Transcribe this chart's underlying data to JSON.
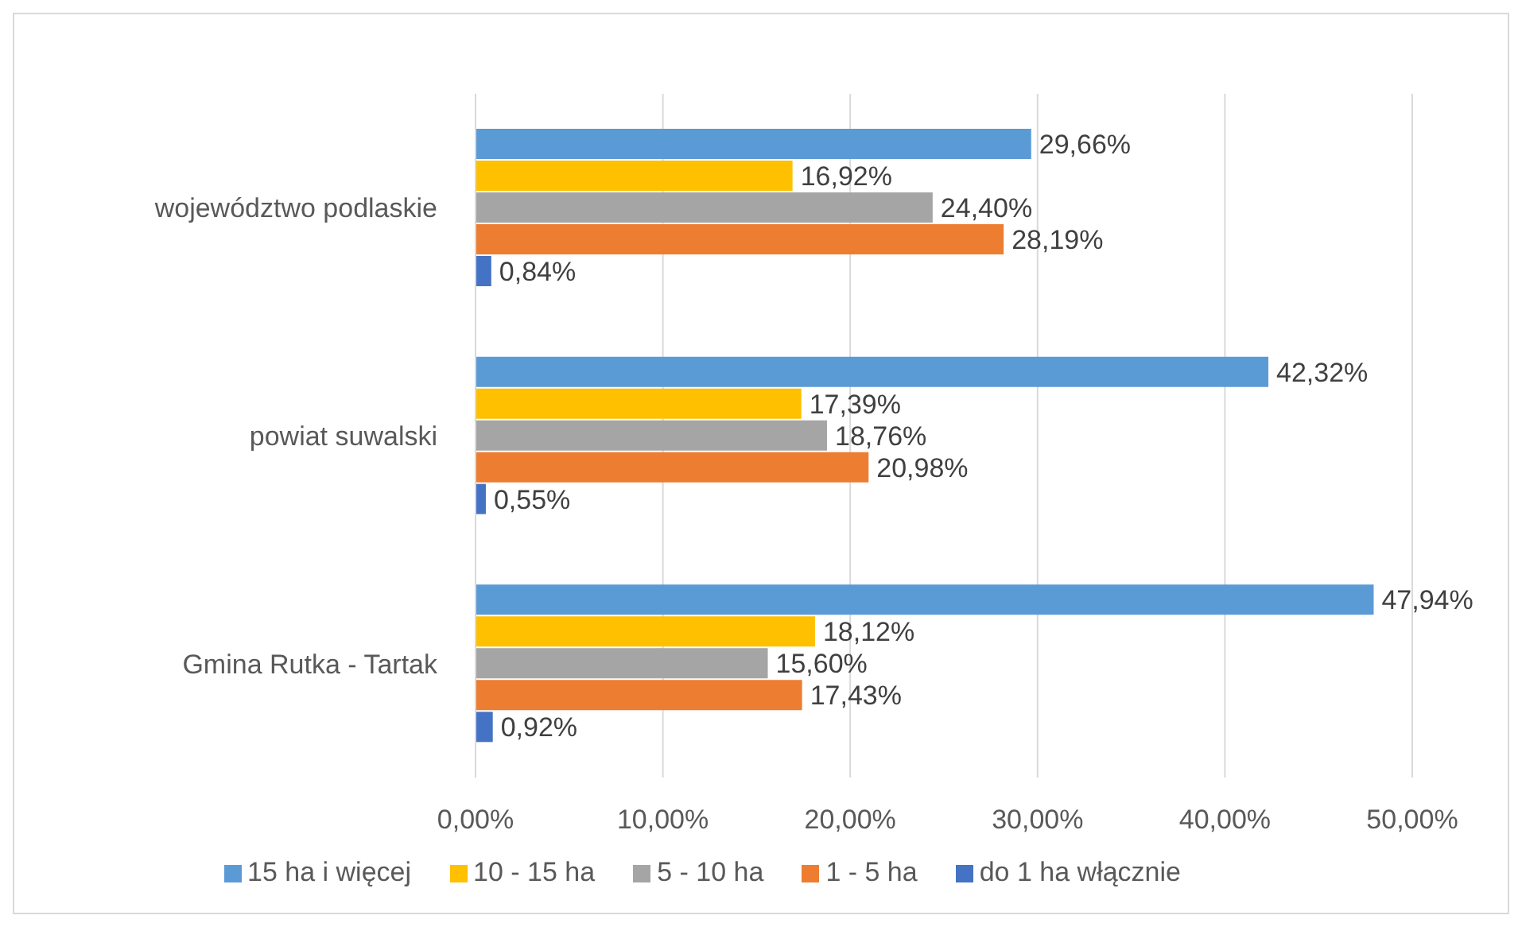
{
  "chart_data": {
    "type": "bar",
    "orientation": "horizontal",
    "categories": [
      "województwo podlaskie",
      "powiat suwalski",
      "Gmina Rutka - Tartak"
    ],
    "series": [
      {
        "name": "15 ha i więcej",
        "color": "#5b9bd5",
        "values": [
          29.66,
          42.32,
          47.94
        ],
        "value_labels": [
          "29,66%",
          "42,32%",
          "47,94%"
        ]
      },
      {
        "name": "10 - 15 ha",
        "color": "#ffc000",
        "values": [
          16.92,
          17.39,
          18.12
        ],
        "value_labels": [
          "16,92%",
          "17,39%",
          "18,12%"
        ]
      },
      {
        "name": "5 - 10 ha",
        "color": "#a5a5a5",
        "values": [
          24.4,
          18.76,
          15.6
        ],
        "value_labels": [
          "24,40%",
          "18,76%",
          "15,60%"
        ]
      },
      {
        "name": "1 - 5 ha",
        "color": "#ed7d31",
        "values": [
          28.19,
          20.98,
          17.43
        ],
        "value_labels": [
          "28,19%",
          "20,98%",
          "17,43%"
        ]
      },
      {
        "name": "do 1 ha włącznie",
        "color": "#4472c4",
        "values": [
          0.84,
          0.55,
          0.92
        ],
        "value_labels": [
          "0,84%",
          "0,55%",
          "0,92%"
        ]
      }
    ],
    "xlim": [
      0,
      50
    ],
    "xticks": [
      {
        "value": 0,
        "label": "0,00%"
      },
      {
        "value": 10,
        "label": "10,00%"
      },
      {
        "value": 20,
        "label": "20,00%"
      },
      {
        "value": 30,
        "label": "30,00%"
      },
      {
        "value": 40,
        "label": "40,00%"
      },
      {
        "value": 50,
        "label": "50,00%"
      }
    ],
    "grid": "x",
    "legend": "bottom"
  }
}
